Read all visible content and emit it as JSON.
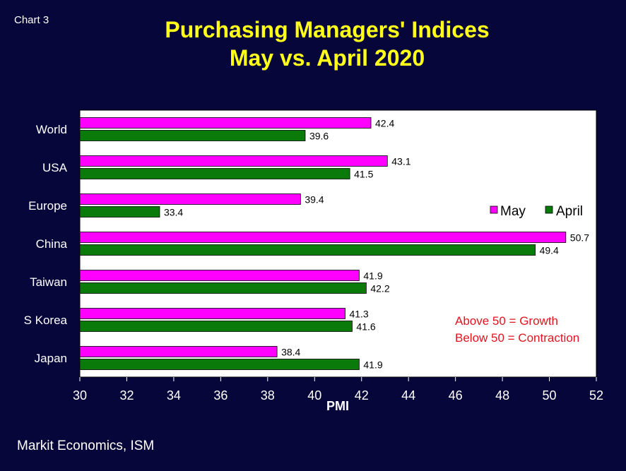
{
  "header": {
    "chart_label": "Chart 3",
    "title_line1": "Purchasing Managers' Indices",
    "title_line2": "May vs. April 2020"
  },
  "footer": {
    "source": "Markit Economics, ISM"
  },
  "colors": {
    "may": "#ff00ff",
    "april": "#0a7a0a",
    "background": "#07063a",
    "title": "#ffff1a",
    "note": "#e0141e"
  },
  "chart_data": {
    "type": "bar",
    "orientation": "horizontal",
    "title": "Purchasing Managers' Indices May vs. April 2020",
    "xlabel": "PMI",
    "ylabel": "",
    "categories": [
      "World",
      "USA",
      "Europe",
      "China",
      "Taiwan",
      "S Korea",
      "Japan"
    ],
    "series": [
      {
        "name": "May",
        "values": [
          42.4,
          43.1,
          39.4,
          50.7,
          41.9,
          41.3,
          38.4
        ]
      },
      {
        "name": "April",
        "values": [
          39.6,
          41.5,
          33.4,
          49.4,
          42.2,
          41.6,
          41.9
        ]
      }
    ],
    "xlim": [
      30,
      52
    ],
    "xticks": [
      30,
      32,
      34,
      36,
      38,
      40,
      42,
      44,
      46,
      48,
      50,
      52
    ],
    "grid": false,
    "legend": "right",
    "annotation": [
      "Above 50 = Growth",
      "Below 50 = Contraction"
    ]
  }
}
